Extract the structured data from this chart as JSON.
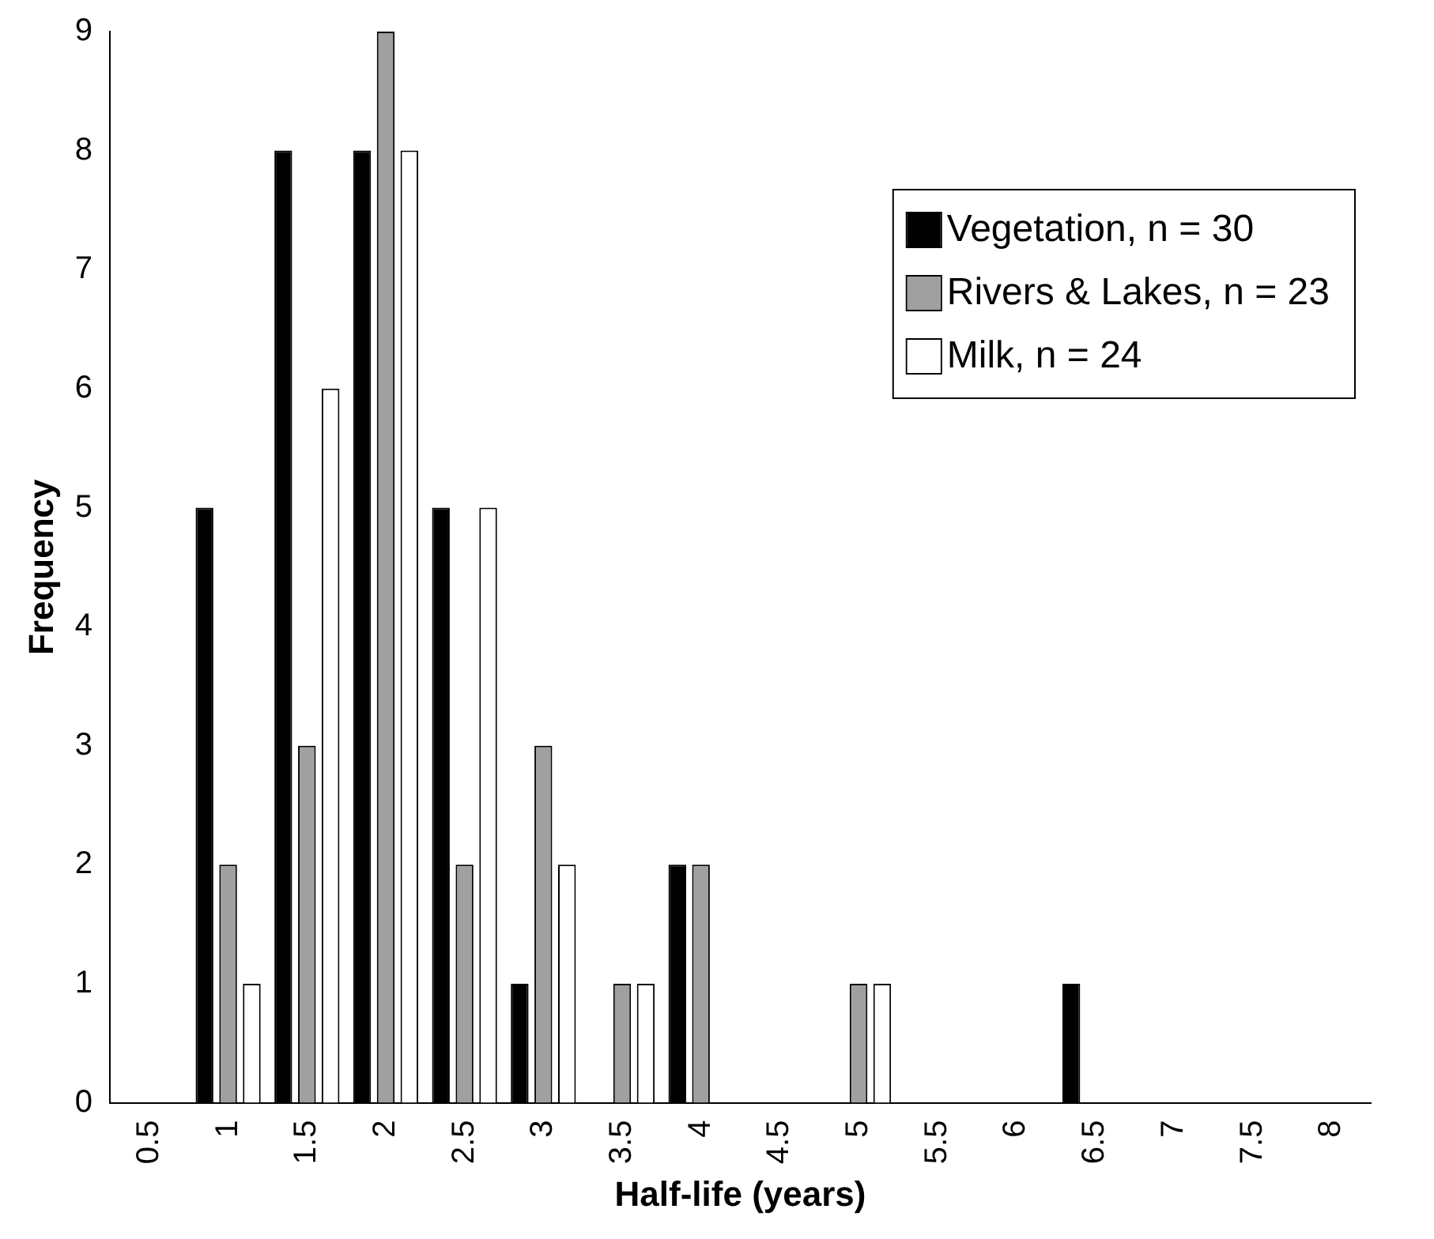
{
  "chart_data": {
    "type": "bar",
    "xlabel": "Half-life (years)",
    "ylabel": "Frequency",
    "categories": [
      "0.5",
      "1",
      "1.5",
      "2",
      "2.5",
      "3",
      "3.5",
      "4",
      "4.5",
      "5",
      "5.5",
      "6",
      "6.5",
      "7",
      "7.5",
      "8"
    ],
    "series": [
      {
        "name": "Vegetation, n = 30",
        "color": "#000000",
        "values": [
          0,
          5,
          8,
          8,
          5,
          1,
          0,
          2,
          0,
          0,
          0,
          0,
          1,
          0,
          0,
          0
        ]
      },
      {
        "name": "Rivers & Lakes, n = 23",
        "color": "#a0a0a0",
        "values": [
          0,
          2,
          3,
          9,
          2,
          3,
          1,
          2,
          0,
          1,
          0,
          0,
          0,
          0,
          0,
          0
        ]
      },
      {
        "name": "Milk, n = 24",
        "color": "#ffffff",
        "values": [
          0,
          1,
          6,
          8,
          5,
          2,
          1,
          0,
          0,
          1,
          0,
          0,
          0,
          0,
          0,
          0
        ]
      }
    ],
    "ylim": [
      0,
      9
    ],
    "yticks": [
      0,
      1,
      2,
      3,
      4,
      5,
      6,
      7,
      8,
      9
    ],
    "grid": false,
    "legend": "top right"
  }
}
